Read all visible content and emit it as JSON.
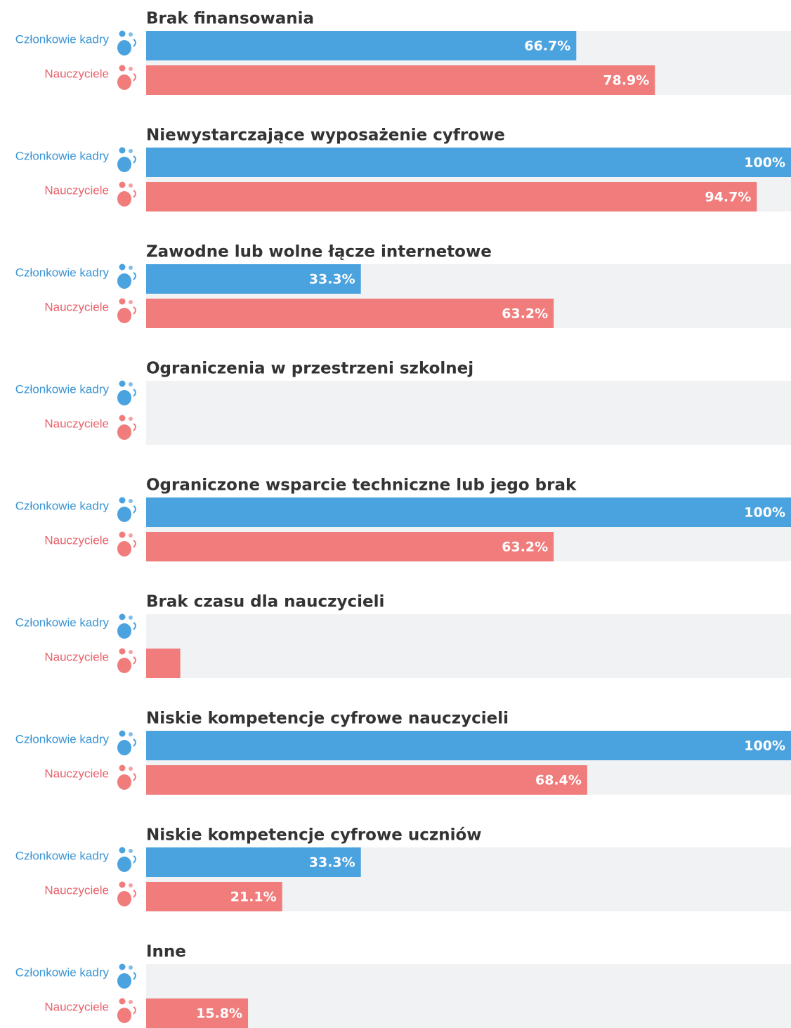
{
  "chart_data": {
    "type": "bar",
    "orientation": "horizontal",
    "categories": [
      "Brak finansowania",
      "Niewystarczające wyposażenie cyfrowe",
      "Zawodne lub wolne łącze internetowe",
      "Ograniczenia w przestrzeni szkolnej",
      "Ograniczone wsparcie techniczne lub jego brak",
      "Brak czasu dla nauczycieli",
      "Niskie kompetencje cyfrowe nauczycieli",
      "Niskie kompetencje cyfrowe uczniów",
      "Inne"
    ],
    "series": [
      {
        "name": "Członkowie kadry",
        "color": "#4aa3df",
        "label_color": "#3a94d4",
        "values": [
          66.7,
          100,
          33.3,
          0,
          100,
          0,
          100,
          33.3,
          0
        ],
        "value_labels": [
          "66.7%",
          "100%",
          "33.3%",
          null,
          "100%",
          null,
          "100%",
          "33.3%",
          null
        ]
      },
      {
        "name": "Nauczyciele",
        "color": "#f07c7c",
        "label_color": "#e8606a",
        "values": [
          78.9,
          94.7,
          63.2,
          0,
          63.2,
          5.3,
          68.4,
          21.1,
          15.8
        ],
        "value_labels": [
          "78.9%",
          "94.7%",
          "63.2%",
          null,
          "63.2%",
          null,
          "68.4%",
          "21.1%",
          "15.8%"
        ]
      }
    ],
    "xlim": [
      0,
      100
    ]
  }
}
